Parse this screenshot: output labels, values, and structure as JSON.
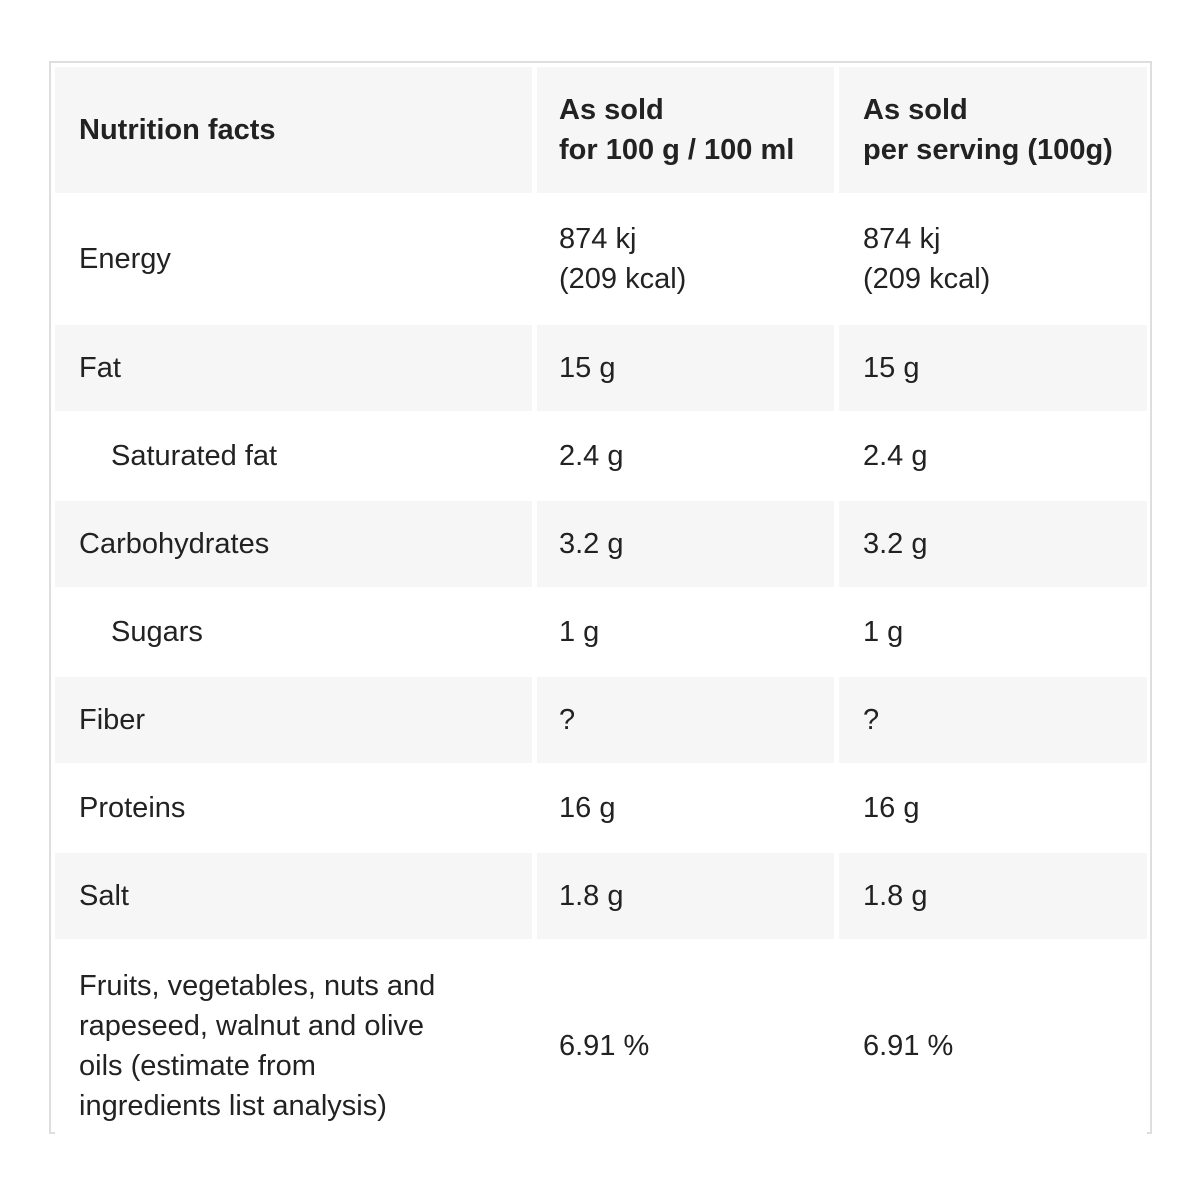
{
  "table": {
    "headers": {
      "col1": "Nutrition facts",
      "col2": "As sold\nfor 100 g / 100 ml",
      "col3": "As sold\nper serving (100g)"
    },
    "rows": [
      {
        "label": "Energy",
        "per100": "874 kj\n(209 kcal)",
        "perServing": "874 kj\n(209 kcal)"
      },
      {
        "label": "Fat",
        "per100": "15 g",
        "perServing": "15 g"
      },
      {
        "label": "Saturated fat",
        "per100": "2.4 g",
        "perServing": "2.4 g"
      },
      {
        "label": "Carbohydrates",
        "per100": "3.2 g",
        "perServing": "3.2 g"
      },
      {
        "label": "Sugars",
        "per100": "1 g",
        "perServing": "1 g"
      },
      {
        "label": "Fiber",
        "per100": "?",
        "perServing": "?"
      },
      {
        "label": "Proteins",
        "per100": "16 g",
        "perServing": "16 g"
      },
      {
        "label": "Salt",
        "per100": "1.8 g",
        "perServing": "1.8 g"
      },
      {
        "label": "Fruits, vegetables, nuts and\nrapeseed, walnut and olive\noils (estimate from\ningredients list analysis)",
        "per100": "6.91 %",
        "perServing": "6.91 %"
      }
    ]
  },
  "colors": {
    "shaded_row": "#f6f6f6",
    "border": "#dedede",
    "text": "#222222"
  }
}
